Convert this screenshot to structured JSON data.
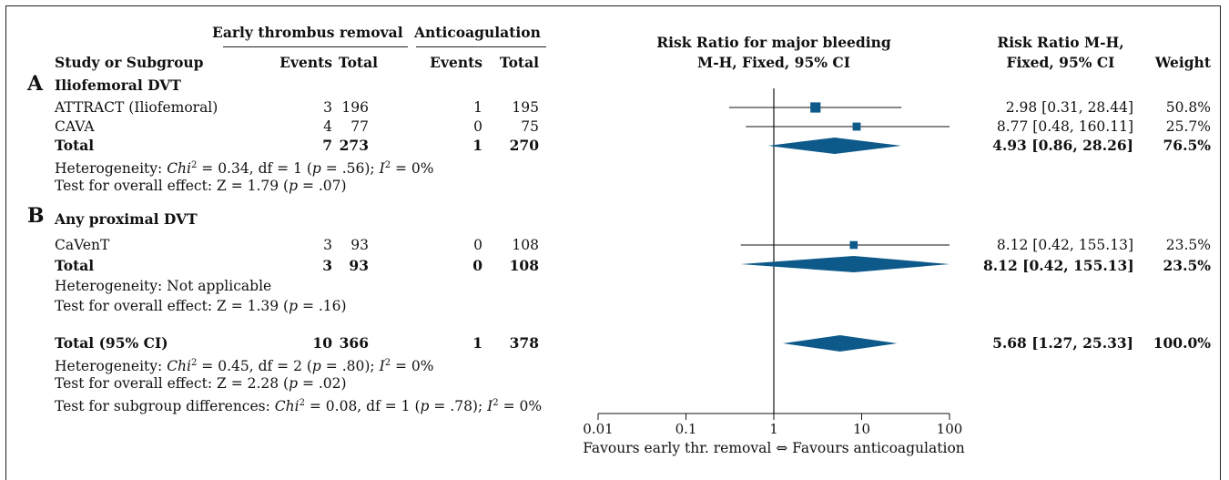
{
  "header": {
    "group1": "Early thrombus removal",
    "group2": "Anticoagulation",
    "col_study": "Study or Subgroup",
    "col_events1": "Events",
    "col_total1": "Total",
    "col_events2": "Events",
    "col_total2": "Total",
    "plot_title_line1": "Risk Ratio for major bleeding",
    "plot_title_line2": "M-H, Fixed, 95% CI",
    "rr_title_line1": "Risk Ratio M-H,",
    "rr_title_line2": "Fixed, 95% CI",
    "weight_title": "Weight"
  },
  "sections": [
    {
      "letter": "A",
      "title": "Iliofemoral DVT",
      "rows": [
        {
          "study": "ATTRACT (Iliofemoral)",
          "e1": "3",
          "t1": "196",
          "e2": "1",
          "t2": "195",
          "ci_text": "2.98 [0.31, 28.44]",
          "weight": "50.8%"
        },
        {
          "study": "CAVA",
          "e1": "4",
          "t1": "77",
          "e2": "0",
          "t2": "75",
          "ci_text": "8.77 [0.48, 160.11]",
          "weight": "25.7%"
        }
      ],
      "total": {
        "label": "Total",
        "e1": "7",
        "t1": "273",
        "e2": "1",
        "t2": "270",
        "ci_text": "4.93 [0.86, 28.26]",
        "weight": "76.5%"
      },
      "het_prefix": "Heterogeneity: ",
      "het_chi": "Chi",
      "het_mid": " = 0.34, df = 1 (",
      "het_p": "p",
      "het_end": " = .56); ",
      "het_i": "I",
      "het_tail": " = 0%",
      "overall_prefix": "Test for overall effect: Z = 1.79 (",
      "overall_p": "p",
      "overall_end": " = .07)"
    },
    {
      "letter": "B",
      "title": "Any proximal DVT",
      "rows": [
        {
          "study": "CaVenT",
          "e1": "3",
          "t1": "93",
          "e2": "0",
          "t2": "108",
          "ci_text": "8.12 [0.42, 155.13]",
          "weight": "23.5%"
        }
      ],
      "total": {
        "label": "Total",
        "e1": "3",
        "t1": "93",
        "e2": "0",
        "t2": "108",
        "ci_text": "8.12 [0.42, 155.13]",
        "weight": "23.5%"
      },
      "het_text": "Heterogeneity: Not applicable",
      "overall_prefix": "Test for overall effect: Z = 1.39 (",
      "overall_p": "p",
      "overall_end": " = .16)"
    }
  ],
  "overall": {
    "label": "Total (95% CI)",
    "e1": "10",
    "t1": "366",
    "e2": "1",
    "t2": "378",
    "ci_text": "5.68 [1.27, 25.33]",
    "weight": "100.0%",
    "het_prefix": "Heterogeneity: ",
    "het_chi": "Chi",
    "het_mid": " = 0.45, df = 2 (",
    "het_p": "p",
    "het_end": " = .80); ",
    "het_i": "I",
    "het_tail": " = 0%",
    "overall_prefix": "Test for overall effect: Z = 2.28 (",
    "overall_p": "p",
    "overall_end": " = .02)",
    "sub_prefix": "Test for subgroup differences: ",
    "sub_chi": "Chi",
    "sub_mid": " = 0.08, df = 1 (",
    "sub_p": "p",
    "sub_end": " = .78); ",
    "sub_i": "I",
    "sub_tail": " = 0%"
  },
  "superscript": "2",
  "axis_footer": "Favours early thr. removal ⇔ Favours anticoagulation",
  "colors": {
    "marker": "#0d5a8a",
    "line": "#111111"
  },
  "chart_data": {
    "type": "forest",
    "scale": "log",
    "xlim": [
      0.01,
      100
    ],
    "ticks": [
      {
        "value": 0.01,
        "label": "0.01"
      },
      {
        "value": 0.1,
        "label": "0.1"
      },
      {
        "value": 1,
        "label": "1"
      },
      {
        "value": 10,
        "label": "10"
      },
      {
        "value": 100,
        "label": "100"
      }
    ],
    "xlabel": "Favours early thr. removal ⇔ Favours anticoagulation",
    "studies": [
      {
        "name": "ATTRACT (Iliofemoral)",
        "rr": 2.98,
        "lo": 0.31,
        "hi": 28.44,
        "weight": 50.8
      },
      {
        "name": "CAVA",
        "rr": 8.77,
        "lo": 0.48,
        "hi": 160.11,
        "weight": 25.7
      },
      {
        "name": "CaVenT",
        "rr": 8.12,
        "lo": 0.42,
        "hi": 155.13,
        "weight": 23.5
      }
    ],
    "pooled": [
      {
        "name": "Total (A)",
        "rr": 4.93,
        "lo": 0.86,
        "hi": 28.26
      },
      {
        "name": "Total (B)",
        "rr": 8.12,
        "lo": 0.42,
        "hi": 155.13
      },
      {
        "name": "Total (95% CI)",
        "rr": 5.68,
        "lo": 1.27,
        "hi": 25.33
      }
    ]
  }
}
